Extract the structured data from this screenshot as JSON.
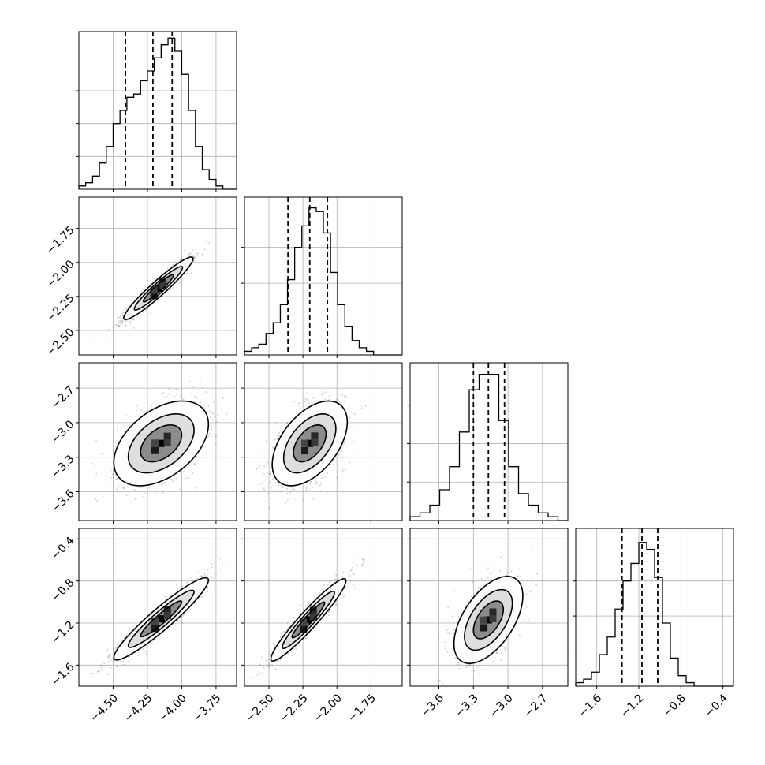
{
  "chart_data": {
    "type": "corner",
    "title": "",
    "parameters": [
      {
        "range": [
          -4.75,
          -3.6
        ],
        "ticks": [
          -4.5,
          -4.25,
          -4.0,
          -3.75
        ],
        "tick_labels": [
          "−4.50",
          "−4.25",
          "−4.00",
          "−3.75"
        ],
        "quantiles": [
          -4.41,
          -4.21,
          -4.07
        ],
        "hist": [
          1,
          2,
          4,
          8,
          13,
          20,
          24,
          28,
          29,
          33,
          36,
          40,
          44,
          46,
          42,
          35,
          24,
          13,
          6,
          3,
          1,
          0,
          0
        ],
        "hist_y_max": 48,
        "hist_y_ticks": [
          10,
          20,
          30
        ]
      },
      {
        "range": [
          -2.68,
          -1.52
        ],
        "ticks": [
          -2.5,
          -2.25,
          -2.0,
          -1.75
        ],
        "tick_labels": [
          "−2.50",
          "−2.25",
          "−2.00",
          "−1.75"
        ],
        "quantiles": [
          -2.36,
          -2.2,
          -2.07
        ],
        "hist": [
          1,
          2,
          3,
          6,
          9,
          14,
          21,
          30,
          36,
          41,
          40,
          34,
          23,
          14,
          8,
          4,
          2,
          1,
          0,
          0,
          0,
          0
        ],
        "hist_y_max": 44,
        "hist_y_ticks": [
          10,
          20,
          30
        ]
      },
      {
        "range": [
          -3.85,
          -2.48
        ],
        "ticks": [
          -3.6,
          -3.3,
          -3.0,
          -2.7
        ],
        "tick_labels": [
          "−3.6",
          "−3.3",
          "−3.0",
          "−2.7"
        ],
        "quantiles": [
          -3.3,
          -3.17,
          -3.03
        ],
        "hist": [
          1,
          2,
          4,
          8,
          14,
          23,
          34,
          38,
          38,
          26,
          14,
          7,
          4,
          2,
          1,
          0
        ],
        "hist_y_max": 41,
        "hist_y_ticks": [
          10,
          20,
          30
        ]
      },
      {
        "range": [
          -1.8,
          -0.3
        ],
        "ticks": [
          -1.6,
          -1.2,
          -0.8,
          -0.4
        ],
        "tick_labels": [
          "−1.6",
          "−1.2",
          "−0.8",
          "−0.4"
        ],
        "quantiles": [
          -1.36,
          -1.17,
          -1.02
        ],
        "hist": [
          1,
          2,
          4,
          9,
          14,
          22,
          30,
          35,
          41,
          39,
          31,
          18,
          8,
          3,
          1,
          0,
          0,
          0,
          0,
          0
        ],
        "hist_y_max": 45,
        "hist_y_ticks": [
          10,
          20,
          30
        ]
      }
    ],
    "pairs": [
      {
        "x": 0,
        "y": 1,
        "center": [
          -4.17,
          -2.19
        ],
        "sd": [
          0.11,
          0.1
        ],
        "rho": 0.95
      },
      {
        "x": 0,
        "y": 2,
        "center": [
          -4.15,
          -3.18
        ],
        "sd": [
          0.15,
          0.16
        ],
        "rho": 0.45
      },
      {
        "x": 1,
        "y": 2,
        "center": [
          -2.2,
          -3.18
        ],
        "sd": [
          0.12,
          0.16
        ],
        "rho": 0.5
      },
      {
        "x": 0,
        "y": 3,
        "center": [
          -4.15,
          -1.16
        ],
        "sd": [
          0.15,
          0.17
        ],
        "rho": 0.94
      },
      {
        "x": 1,
        "y": 3,
        "center": [
          -2.21,
          -1.17
        ],
        "sd": [
          0.12,
          0.17
        ],
        "rho": 0.95
      },
      {
        "x": 2,
        "y": 3,
        "center": [
          -3.17,
          -1.17
        ],
        "sd": [
          0.13,
          0.18
        ],
        "rho": 0.55
      }
    ],
    "contour_levels_sigma": [
      1,
      1.6,
      2.3
    ],
    "grid": true,
    "legend": "none"
  }
}
